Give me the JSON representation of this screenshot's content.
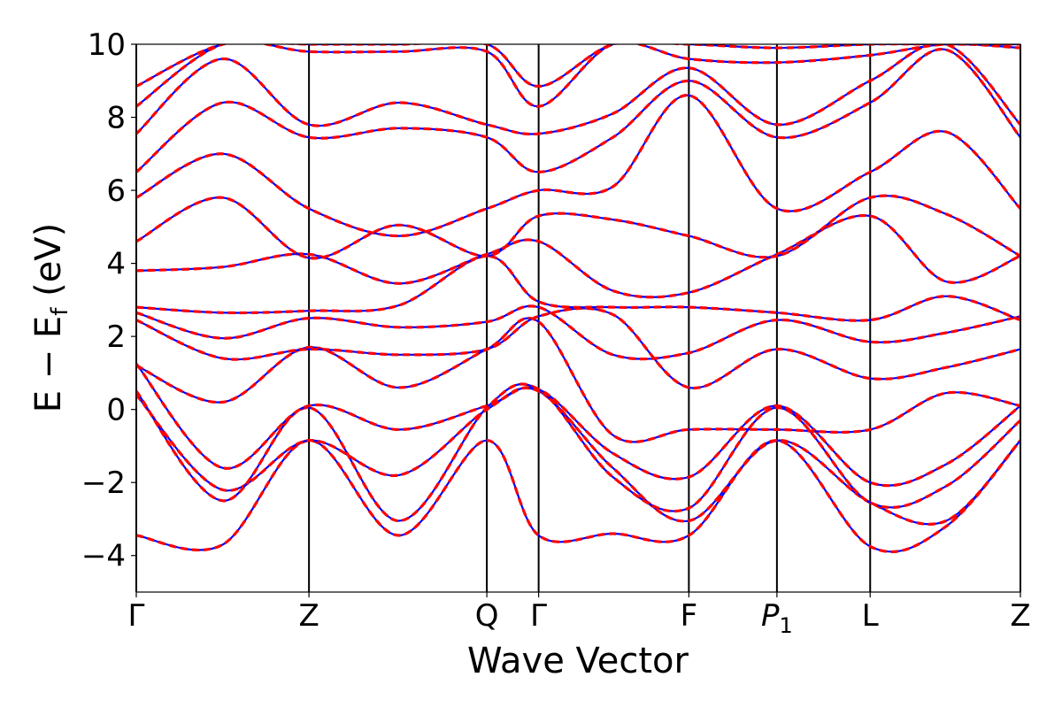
{
  "chart_data": {
    "type": "line",
    "title": "",
    "xlabel": "Wave Vector",
    "ylabel": {
      "main": "E − E",
      "sub": "f",
      "unit": " (eV)"
    },
    "ylim": [
      -5,
      10
    ],
    "yticks": [
      {
        "value": -4,
        "label": "−4"
      },
      {
        "value": -2,
        "label": "−2"
      },
      {
        "value": 0,
        "label": "0"
      },
      {
        "value": 2,
        "label": "2"
      },
      {
        "value": 4,
        "label": "4"
      },
      {
        "value": 6,
        "label": "6"
      },
      {
        "value": 8,
        "label": "8"
      },
      {
        "value": 10,
        "label": "10"
      }
    ],
    "high_symmetry_points": [
      {
        "label": "Γ",
        "x": 0.0
      },
      {
        "label": "Z",
        "x": 1.0
      },
      {
        "label": "Q",
        "x": 2.03
      },
      {
        "label": "Γ",
        "x": 2.33
      },
      {
        "label": "F",
        "x": 3.2
      },
      {
        "label": "P",
        "sub": "1",
        "italic": true,
        "x": 3.71
      },
      {
        "label": "L",
        "x": 4.25
      },
      {
        "label": "Z",
        "x": 5.12
      }
    ],
    "x_samples": [
      0.0,
      0.5,
      1.0,
      1.52,
      2.03,
      2.33,
      2.76,
      3.2,
      3.71,
      4.25,
      4.69,
      5.12
    ],
    "series_style": {
      "overlay_a": {
        "color": "#ff0000",
        "dash": "solid"
      },
      "overlay_b": {
        "color": "#0000ff",
        "dash": "dashed"
      }
    },
    "bands": [
      {
        "values": [
          -3.45,
          -3.7,
          -0.85,
          -3.45,
          -0.85,
          -3.45,
          -3.4,
          -3.45,
          -0.85,
          -3.75,
          -3.2,
          -0.85
        ]
      },
      {
        "values": [
          0.4,
          -2.2,
          -0.85,
          -1.8,
          0.0,
          0.5,
          -1.6,
          -3.05,
          -0.85,
          -2.55,
          -3.05,
          -0.85
        ]
      },
      {
        "values": [
          0.5,
          -2.5,
          0.05,
          -3.05,
          0.05,
          0.55,
          -1.85,
          -2.7,
          0.05,
          -2.55,
          -2.1,
          -0.3
        ]
      },
      {
        "values": [
          1.25,
          -1.6,
          0.1,
          -0.55,
          0.1,
          0.55,
          -1.2,
          -1.85,
          0.1,
          -2.0,
          -1.5,
          0.1
        ]
      },
      {
        "values": [
          1.2,
          0.2,
          1.7,
          0.6,
          1.65,
          2.4,
          -0.7,
          -0.55,
          -0.55,
          -0.55,
          0.45,
          0.1
        ]
      },
      {
        "values": [
          2.45,
          1.4,
          1.65,
          1.5,
          1.65,
          2.55,
          2.6,
          0.6,
          1.65,
          0.85,
          1.15,
          1.65
        ]
      },
      {
        "values": [
          2.65,
          1.95,
          2.5,
          2.25,
          2.4,
          2.8,
          1.5,
          1.55,
          2.45,
          1.85,
          2.1,
          2.55
        ]
      },
      {
        "values": [
          2.8,
          2.65,
          2.7,
          2.85,
          4.2,
          2.95,
          2.8,
          2.8,
          2.65,
          2.45,
          3.1,
          2.45
        ]
      },
      {
        "values": [
          3.8,
          3.9,
          4.25,
          3.45,
          4.25,
          4.6,
          3.25,
          3.2,
          4.25,
          5.3,
          3.5,
          4.2
        ]
      },
      {
        "values": [
          4.6,
          5.8,
          4.15,
          5.05,
          4.2,
          5.3,
          5.2,
          4.75,
          4.2,
          5.8,
          5.35,
          4.2
        ]
      },
      {
        "values": [
          5.8,
          7.0,
          5.5,
          4.75,
          5.5,
          6.0,
          6.1,
          8.6,
          5.5,
          6.5,
          7.6,
          5.5
        ]
      },
      {
        "values": [
          6.5,
          8.4,
          7.45,
          7.7,
          7.45,
          6.5,
          7.45,
          9.0,
          7.45,
          8.4,
          9.85,
          7.45
        ]
      },
      {
        "values": [
          7.55,
          9.6,
          7.8,
          8.4,
          7.8,
          7.55,
          8.1,
          9.35,
          7.8,
          9.0,
          10.0,
          7.8
        ]
      },
      {
        "values": [
          8.3,
          10.0,
          9.8,
          9.8,
          9.8,
          8.3,
          10.0,
          9.6,
          9.5,
          9.7,
          10.0,
          9.9
        ]
      },
      {
        "values": [
          8.85,
          10.0,
          10.0,
          10.0,
          10.0,
          8.85,
          10.0,
          10.0,
          9.9,
          10.0,
          10.0,
          10.0
        ]
      }
    ]
  }
}
